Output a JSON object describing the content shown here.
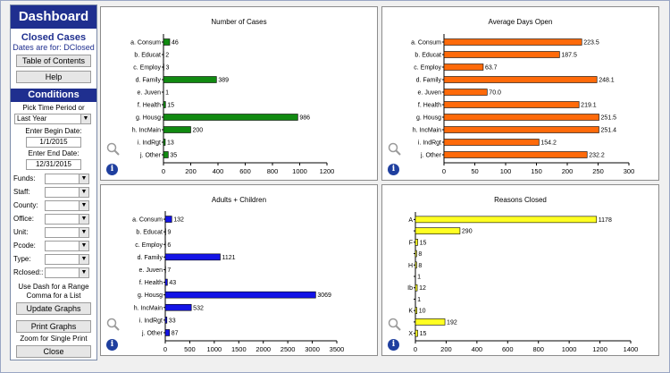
{
  "sidebar": {
    "title": "Dashboard",
    "closed_cases": "Closed Cases",
    "dates_for": "Dates are for: DClosed",
    "toc_button": "Table of Contents",
    "help_button": "Help",
    "conditions_title": "Conditions",
    "pick_time_label": "Pick Time Period or",
    "time_period_value": "Last Year",
    "begin_label": "Enter Begin Date:",
    "begin_value": "1/1/2015",
    "end_label": "Enter End Date:",
    "end_value": "12/31/2015",
    "filters": [
      {
        "label": "Funds:",
        "value": ""
      },
      {
        "label": "Staff:",
        "value": ""
      },
      {
        "label": "County:",
        "value": ""
      },
      {
        "label": "Office:",
        "value": ""
      },
      {
        "label": "Unit:",
        "value": ""
      },
      {
        "label": "Pcode:",
        "value": ""
      },
      {
        "label": "Type:",
        "value": ""
      },
      {
        "label": "Rclosed::",
        "value": ""
      }
    ],
    "dash_note": "Use  Dash for a Range Comma  for a List",
    "update_button": "Update Graphs",
    "print_button": "Print Graphs",
    "zoom_note": "Zoom for Single Print",
    "close_button": "Close"
  },
  "icons": {
    "zoom": "magnifier-icon",
    "info": "info-icon",
    "dropdown": "chevron-down-icon"
  },
  "chart_data": [
    {
      "type": "bar",
      "orientation": "horizontal",
      "title": "Number of Cases",
      "categories": [
        "a. Consum",
        "b. Educat",
        "c. Employ",
        "d. Family",
        "e. Juven",
        "f. Health",
        "g. Housg",
        "h. IncMain",
        "i. IndRgt",
        "j. Other"
      ],
      "values": [
        46,
        2,
        3,
        389,
        1,
        15,
        986,
        200,
        13,
        35
      ],
      "labels": [
        "46",
        "2",
        "3",
        "389",
        "1",
        "15",
        "986",
        "200",
        "13",
        "35"
      ],
      "xlim": [
        0,
        1200
      ],
      "ticks": [
        "0",
        "200",
        "400",
        "600",
        "800",
        "1000",
        "1200"
      ],
      "color": "#118a11"
    },
    {
      "type": "bar",
      "orientation": "horizontal",
      "title": "Average Days Open",
      "categories": [
        "a. Consum",
        "b. Educat",
        "c. Employ",
        "d. Family",
        "e. Juven",
        "f. Health",
        "g. Housg",
        "h. IncMain",
        "i. IndRgt",
        "j. Other"
      ],
      "values": [
        223.5,
        187.5,
        63.7,
        248.1,
        70.0,
        219.1,
        251.5,
        251.4,
        154.2,
        232.2
      ],
      "labels": [
        "223.5",
        "187.5",
        "63.7",
        "248.1",
        "70.0",
        "219.1",
        "251.5",
        "251.4",
        "154.2",
        "232.2"
      ],
      "xlim": [
        0,
        300
      ],
      "ticks": [
        "0",
        "50",
        "100",
        "150",
        "200",
        "250",
        "300"
      ],
      "color": "#ff6a0a"
    },
    {
      "type": "bar",
      "orientation": "horizontal",
      "title": "Adults + Children",
      "categories": [
        "a. Consum",
        "b. Educat",
        "c. Employ",
        "d. Family",
        "e. Juven",
        "f. Health",
        "g. Housg",
        "h. IncMain",
        "i. IndRgt",
        "j. Other"
      ],
      "values": [
        132,
        9,
        6,
        1121,
        7,
        43,
        3069,
        532,
        33,
        87
      ],
      "labels": [
        "132",
        "9",
        "6",
        "1121",
        "7",
        "43",
        "3069",
        "532",
        "33",
        "87"
      ],
      "xlim": [
        0,
        3500
      ],
      "ticks": [
        "0",
        "500",
        "1000",
        "1500",
        "2000",
        "2500",
        "3000",
        "3500"
      ],
      "color": "#1414e6"
    },
    {
      "type": "bar",
      "orientation": "horizontal",
      "title": "Reasons Closed",
      "categories": [
        "A",
        "",
        "F",
        "",
        "H",
        "",
        "Ib",
        "",
        "K",
        "",
        "X"
      ],
      "values": [
        1178,
        290,
        15,
        8,
        8,
        1,
        12,
        1,
        10,
        192,
        15
      ],
      "labels": [
        "1178",
        "290",
        "15",
        "8",
        "8",
        "1",
        "12",
        "1",
        "10",
        "192",
        "15"
      ],
      "xlim": [
        0,
        1400
      ],
      "ticks": [
        "0",
        "200",
        "400",
        "600",
        "800",
        "1000",
        "1200",
        "1400"
      ],
      "color": "#ffff22"
    }
  ]
}
